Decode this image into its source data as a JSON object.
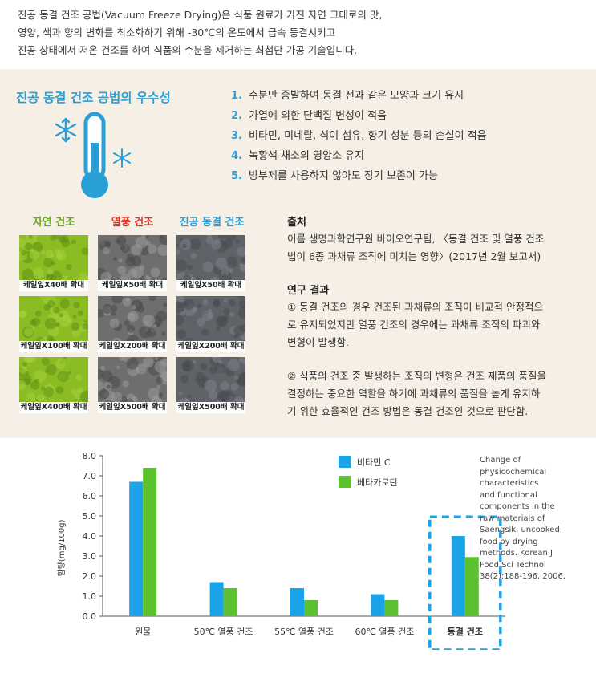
{
  "intro": [
    "진공 동결 건조 공법(Vacuum Freeze Drying)은 식품 원료가 가진 자연 그대로의 맛,",
    "영양, 색과 향의 변화를 최소화하기 위해 -30℃의 온도에서 급속 동결시키고",
    "진공 상태에서 저온 건조를 하여 식품의 수분을 제거하는 최첨단 가공 기술입니다."
  ],
  "panel": {
    "title": "진공 동결 건조 공법의 우수성",
    "benefits": [
      {
        "num": "1.",
        "text": "수분만 증발하여 동결 전과 같은 모양과 크기 유지"
      },
      {
        "num": "2.",
        "text": "가열에 의한 단백질 변성이 적음"
      },
      {
        "num": "3.",
        "text": "비타민, 미네랄, 식이 섬유, 향기 성분 등의 손실이 적음"
      },
      {
        "num": "4.",
        "text": "녹황색 채소의 영양소 유지"
      },
      {
        "num": "5.",
        "text": "방부제를 사용하지 않아도 장기 보존이 가능"
      }
    ],
    "icon": "thermometer-snowflake-icon"
  },
  "micrographs": {
    "columns": [
      {
        "title": "자연 건조",
        "color": "#6aa81e",
        "kind": "natural",
        "captions": [
          "케일잎X40배 확대",
          "케일잎X100배 확대",
          "케일잎X400배 확대"
        ]
      },
      {
        "title": "열풍 건조",
        "color": "#e2352c",
        "kind": "hot",
        "captions": [
          "케일잎X50배 확대",
          "케일잎X200배 확대",
          "케일잎X500배 확대"
        ]
      },
      {
        "title": "진공 동결 건조",
        "color": "#2a9fd6",
        "kind": "freeze",
        "captions": [
          "케일잎X50배 확대",
          "케일잎X200배 확대",
          "케일잎X500배 확대"
        ]
      }
    ]
  },
  "source": {
    "heading": "출처",
    "lines": [
      "이름 생명과학연구원 바이오연구팀, 〈동결 건조 및 열풍 건조",
      "법이 6종 과채류 조직에 미치는 영향〉(2017년 2월 보고서)"
    ]
  },
  "results": {
    "heading": "연구 결과",
    "para1": [
      "① 동결 건조의 경우 건조된 과채류의 조직이 비교적 안정적으",
      "로 유지되었지만 열풍 건조의 경우에는 과채류 조직의 파괴와",
      "변형이 발생함."
    ],
    "para2": [
      "② 식품의 건조 중 발생하는 조직의 변형은 건조 제품의 품질을",
      "결정하는 중요한 역할을 하기에 과채류의 품질을 높게 유지하",
      "기 위한 효율적인 건조 방법은 동결 건조인 것으로 판단함."
    ]
  },
  "chart_data": {
    "type": "bar",
    "categories": [
      "원물",
      "50℃ 열풍 건조",
      "55℃ 열풍 건조",
      "60℃ 열풍 건조",
      "동결 건조"
    ],
    "series": [
      {
        "name": "비타민 C",
        "color": "#1aa3e8",
        "values": [
          6.7,
          1.7,
          1.4,
          1.1,
          4.0
        ]
      },
      {
        "name": "베타카로틴",
        "color": "#5cc12f",
        "values": [
          7.4,
          1.4,
          0.8,
          0.8,
          2.95
        ]
      }
    ],
    "yticks": [
      "0.0",
      "1.0",
      "2.0",
      "3.0",
      "4.0",
      "5.0",
      "6.0",
      "7.0",
      "8.0"
    ],
    "ylim": [
      0,
      8
    ],
    "ylabel": "함량(mg/100g)",
    "xlabel": "",
    "title": "",
    "highlight_category": "동결 건조",
    "legend_position": "top-right",
    "grid": false
  },
  "citation": [
    "Change of",
    "physicochemical",
    "characteristics",
    "and functional",
    "components in the",
    "raw materials of",
    "Saengsik, uncooked",
    "food by drying",
    "methods. Korean J",
    "Food Sci Technol",
    "38(2):188-196, 2006."
  ]
}
